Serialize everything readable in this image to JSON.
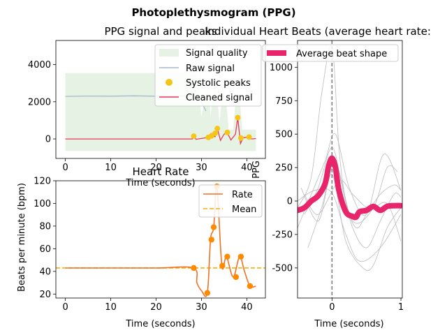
{
  "figure": {
    "suptitle": "Photoplethysmogram (PPG)"
  },
  "chart_data": [
    {
      "type": "line",
      "title": "PPG signal and peaks",
      "xlabel": "Time (seconds)",
      "ylabel": "",
      "xlim": [
        -2.1,
        44.1
      ],
      "ylim": [
        -1050,
        5300
      ],
      "xticks": [
        "0",
        "10",
        "20",
        "30",
        "40"
      ],
      "xtick_values": [
        0,
        10,
        20,
        30,
        40
      ],
      "yticks": [
        "0",
        "2000",
        "4000"
      ],
      "ytick_values": [
        0,
        2000,
        4000
      ],
      "legend_position": "top-right",
      "legend": [
        "Signal quality",
        "Raw signal",
        "Systolic peaks",
        "Cleaned signal"
      ],
      "colors": {
        "quality": "#e6f3e4",
        "raw": "#a6b7cc",
        "peaks": "#f5c518",
        "cleaned": "#e8385a"
      },
      "series": [
        {
          "name": "Raw signal",
          "x": [
            0,
            5,
            10,
            15,
            20,
            25,
            28,
            29,
            30,
            31
          ],
          "y": [
            2290,
            2310,
            2300,
            2320,
            2300,
            2310,
            2300,
            2300,
            2000,
            1500
          ]
        },
        {
          "name": "Cleaned signal",
          "x": [
            0,
            28,
            28.3,
            28.8,
            31.5,
            32.2,
            33,
            33.5,
            34.2,
            35,
            35.7,
            36.5,
            37.5,
            38,
            38.6,
            39.2,
            40.5,
            41,
            42
          ],
          "y": [
            0,
            0,
            160,
            -20,
            80,
            300,
            120,
            560,
            -80,
            260,
            330,
            -60,
            250,
            1150,
            -250,
            60,
            110,
            0,
            20
          ]
        },
        {
          "name": "Systolic peaks",
          "x": [
            28.3,
            31.5,
            32.2,
            33,
            33.5,
            35.7,
            38,
            38.7,
            40.5
          ],
          "y": [
            150,
            80,
            160,
            300,
            560,
            350,
            1150,
            50,
            100
          ]
        }
      ],
      "quality": {
        "x": [
          0,
          28,
          29,
          30,
          31,
          31.5,
          32,
          33,
          34,
          35,
          36,
          37,
          38,
          39,
          40,
          41,
          42
        ],
        "upper": [
          3550,
          3550,
          3500,
          1200,
          2500,
          3500,
          1200,
          3500,
          900,
          3500,
          500,
          500,
          3500,
          500,
          500,
          500,
          500
        ],
        "lower": [
          -650,
          -650,
          -650,
          -650,
          -650,
          -650,
          -650,
          -650,
          -650,
          -650,
          -650,
          -650,
          -650,
          -650,
          -650,
          -650,
          -650
        ]
      }
    },
    {
      "type": "line",
      "title": "Heart Rate",
      "xlabel": "Time (seconds)",
      "ylabel": "Beats per minute (bpm)",
      "xlim": [
        -2.1,
        44.1
      ],
      "ylim": [
        16.5,
        120
      ],
      "xticks": [
        "0",
        "10",
        "20",
        "30",
        "40"
      ],
      "xtick_values": [
        0,
        10,
        20,
        30,
        40
      ],
      "yticks": [
        "20",
        "40",
        "60",
        "80",
        "100",
        "120"
      ],
      "ytick_values": [
        20,
        40,
        60,
        80,
        100,
        120
      ],
      "legend_position": "top-right",
      "legend": [
        "Rate",
        "Mean"
      ],
      "colors": {
        "rate": "#f07124",
        "mean": "#fcae0a",
        "points": "#ff8a00"
      },
      "mean": 43,
      "series": [
        {
          "name": "Rate",
          "x": [
            0,
            10,
            20,
            28.2,
            29,
            30,
            31.3,
            32,
            32.7,
            33.4,
            34.5,
            35.5,
            37,
            38.4,
            39.5,
            40.7,
            42
          ],
          "y": [
            43,
            43,
            43,
            43,
            30,
            23,
            21,
            68,
            79,
            115,
            45,
            53,
            35,
            53,
            40,
            27,
            27
          ]
        },
        {
          "name": "Peaks",
          "x": [
            28.3,
            31.3,
            32.2,
            32.7,
            33.4,
            34.6,
            35.7,
            37.6,
            38.7,
            40.7
          ],
          "y": [
            43,
            21,
            68,
            79,
            115,
            45,
            53,
            35,
            53,
            27
          ]
        }
      ]
    },
    {
      "type": "line",
      "title": "Individual Heart Beats (average heart rate:",
      "xlabel": "Time (seconds)",
      "ylabel": "PPG",
      "xlim": [
        -0.5,
        1.02
      ],
      "ylim": [
        -725,
        1200
      ],
      "xticks": [
        "0",
        "1"
      ],
      "xtick_values": [
        0,
        1
      ],
      "yticks": [
        "-500",
        "-250",
        "0",
        "250",
        "500",
        "750",
        "1000"
      ],
      "ytick_values": [
        -500,
        -250,
        0,
        250,
        500,
        750,
        1000
      ],
      "legend_position": "top-left",
      "legend": [
        "Average beat shape"
      ],
      "colors": {
        "average": "#e8256a",
        "beats": "#bbbbbb",
        "vline": "#707070"
      },
      "average": {
        "x": [
          -0.5,
          -0.4,
          -0.3,
          -0.2,
          -0.1,
          -0.05,
          0,
          0.05,
          0.1,
          0.2,
          0.3,
          0.35,
          0.4,
          0.5,
          0.6,
          0.7,
          0.8,
          0.9,
          1.0
        ],
        "y": [
          -70,
          -50,
          0,
          40,
          130,
          260,
          320,
          250,
          80,
          -80,
          -115,
          -120,
          -80,
          -70,
          -40,
          -70,
          -40,
          -35,
          -35
        ]
      },
      "beats": [
        {
          "x": [
            -0.5,
            -0.3,
            -0.15,
            0,
            0.1,
            0.2,
            0.35,
            0.5,
            0.7,
            0.9,
            1.0
          ],
          "y": [
            -50,
            180,
            800,
            1150,
            400,
            0,
            -200,
            -100,
            50,
            120,
            80
          ]
        },
        {
          "x": [
            -0.4,
            -0.2,
            0,
            0.15,
            0.3,
            0.5,
            0.7,
            0.9,
            1.0
          ],
          "y": [
            -100,
            100,
            400,
            100,
            -200,
            -350,
            -150,
            50,
            30
          ]
        },
        {
          "x": [
            -0.45,
            -0.2,
            0,
            0.2,
            0.45,
            0.6,
            0.8,
            1.0
          ],
          "y": [
            100,
            -150,
            200,
            -300,
            -500,
            -480,
            -200,
            -50
          ]
        },
        {
          "x": [
            -0.5,
            -0.3,
            -0.1,
            0.05,
            0.25,
            0.5,
            0.75,
            1.0
          ],
          "y": [
            -200,
            50,
            300,
            500,
            100,
            -100,
            350,
            80
          ]
        },
        {
          "x": [
            -0.35,
            -0.15,
            0.05,
            0.3,
            0.6,
            0.8,
            0.95
          ],
          "y": [
            -350,
            -50,
            280,
            -150,
            -50,
            250,
            220
          ]
        },
        {
          "x": [
            -0.5,
            -0.25,
            0,
            0.2,
            0.4,
            0.7,
            1.0
          ],
          "y": [
            0,
            80,
            60,
            -250,
            -450,
            -350,
            -100
          ]
        },
        {
          "x": [
            -0.4,
            -0.2,
            0.1,
            0.3,
            0.55,
            0.8,
            1.0
          ],
          "y": [
            50,
            -100,
            150,
            50,
            -60,
            -20,
            -300
          ]
        }
      ]
    }
  ]
}
